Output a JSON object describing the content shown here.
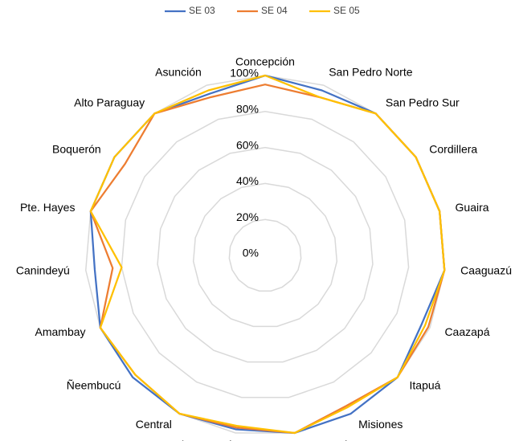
{
  "chart_data": {
    "type": "radar",
    "categories": [
      "Concepción",
      "San Pedro Norte",
      "San Pedro Sur",
      "Cordillera",
      "Guaira",
      "Caaguazú",
      "Caazapá",
      "Itapuá",
      "Misiones",
      "Paraguarí",
      "Alto Paraná",
      "Central",
      "Ñeembucú",
      "Amambay",
      "Canindeyú",
      "Pte. Hayes",
      "Boquerón",
      "Alto Paraguay",
      "Asunción"
    ],
    "series": [
      {
        "name": "SE 03",
        "color": "#4472c4",
        "values": [
          100,
          97,
          100,
          100,
          100,
          100,
          95,
          100,
          100,
          100,
          98,
          100,
          100,
          100,
          95,
          100,
          100,
          100,
          95
        ]
      },
      {
        "name": "SE 04",
        "color": "#ed7d31",
        "values": [
          95,
          93,
          100,
          100,
          100,
          100,
          99,
          100,
          95,
          100,
          97,
          100,
          98,
          100,
          85,
          100,
          93,
          100,
          93
        ]
      },
      {
        "name": "SE 05",
        "color": "#ffc000",
        "values": [
          100,
          93,
          100,
          100,
          100,
          100,
          97,
          100,
          96,
          100,
          96,
          100,
          98,
          100,
          80,
          100,
          100,
          100,
          97
        ]
      }
    ],
    "ylim": [
      0,
      100
    ],
    "yticks": [
      {
        "value": 0,
        "label": "0%"
      },
      {
        "value": 20,
        "label": "20%"
      },
      {
        "value": 40,
        "label": "40%"
      },
      {
        "value": 60,
        "label": "60%"
      },
      {
        "value": 80,
        "label": "80%"
      },
      {
        "value": 100,
        "label": "100%"
      }
    ],
    "grid": true,
    "legend": "top"
  }
}
